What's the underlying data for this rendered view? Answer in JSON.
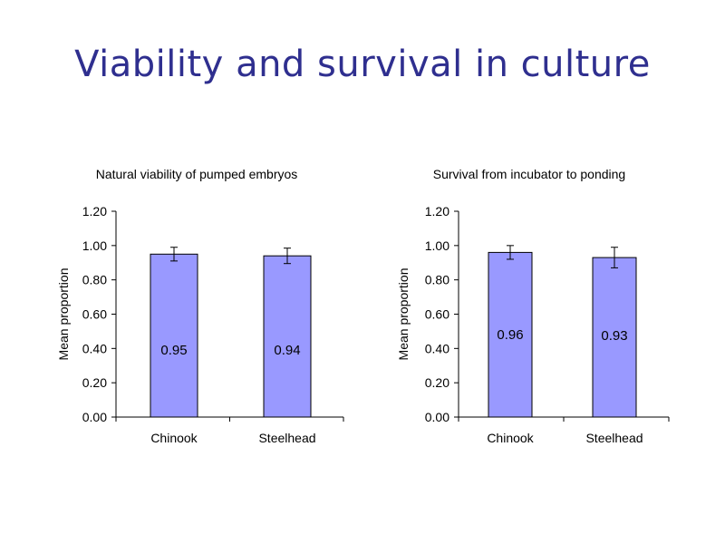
{
  "slide": {
    "title": "Viability and survival in culture"
  },
  "chart_data": [
    {
      "type": "bar",
      "title": "Natural viability of pumped embryos",
      "xlabel": "",
      "ylabel": "Mean proportion",
      "categories": [
        "Chinook",
        "Steelhead"
      ],
      "values": [
        0.95,
        0.94
      ],
      "error": [
        0.04,
        0.045
      ],
      "data_labels": [
        "0.95",
        "0.94"
      ],
      "yticks": [
        "0.00",
        "0.20",
        "0.40",
        "0.60",
        "0.80",
        "1.00",
        "1.20"
      ],
      "ylim": [
        0,
        1.2
      ],
      "grid": false,
      "bar_color": "#9999ff"
    },
    {
      "type": "bar",
      "title": "Survival from incubator to ponding",
      "xlabel": "",
      "ylabel": "Mean proportion",
      "categories": [
        "Chinook",
        "Steelhead"
      ],
      "values": [
        0.96,
        0.93
      ],
      "error": [
        0.04,
        0.06
      ],
      "data_labels": [
        "0.96",
        "0.93"
      ],
      "yticks": [
        "0.00",
        "0.20",
        "0.40",
        "0.60",
        "0.80",
        "1.00",
        "1.20"
      ],
      "ylim": [
        0,
        1.2
      ],
      "grid": false,
      "bar_color": "#9999ff"
    }
  ]
}
